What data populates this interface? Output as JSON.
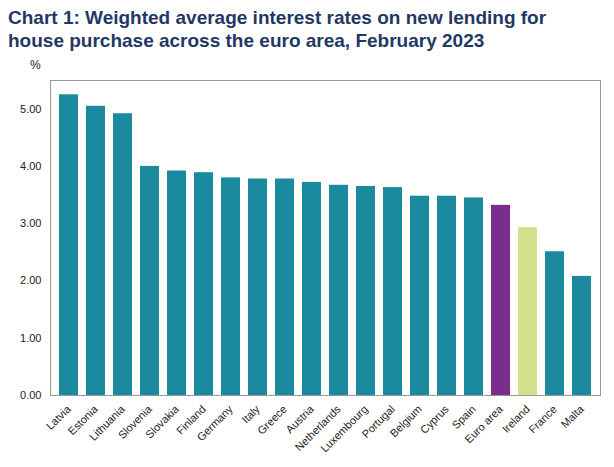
{
  "chart_data": {
    "type": "bar",
    "title": "Chart 1: Weighted average interest rates on new lending for house purchase across the euro area, February 2023",
    "y_label": "%",
    "categories": [
      "Latvia",
      "Estonia",
      "Lithuania",
      "Slovenia",
      "Slovakia",
      "Finland",
      "Germany",
      "Italy",
      "Greece",
      "Austria",
      "Netherlands",
      "Luxembourg",
      "Portugal",
      "Belgium",
      "Cyprus",
      "Spain",
      "Euro area",
      "Ireland",
      "France",
      "Malta"
    ],
    "values": [
      5.25,
      5.05,
      4.92,
      4.0,
      3.92,
      3.89,
      3.8,
      3.78,
      3.78,
      3.72,
      3.67,
      3.65,
      3.63,
      3.48,
      3.48,
      3.45,
      3.32,
      2.93,
      2.51,
      2.08
    ],
    "colors": [
      "#1b8a9e",
      "#1b8a9e",
      "#1b8a9e",
      "#1b8a9e",
      "#1b8a9e",
      "#1b8a9e",
      "#1b8a9e",
      "#1b8a9e",
      "#1b8a9e",
      "#1b8a9e",
      "#1b8a9e",
      "#1b8a9e",
      "#1b8a9e",
      "#1b8a9e",
      "#1b8a9e",
      "#1b8a9e",
      "#7b2d8e",
      "#d4e08a",
      "#1b8a9e",
      "#1b8a9e"
    ],
    "ylim": [
      0,
      5.5
    ],
    "yticks": [
      {
        "value": 0,
        "label": "0.00"
      },
      {
        "value": 1,
        "label": "1.00"
      },
      {
        "value": 2,
        "label": "2.00"
      },
      {
        "value": 3,
        "label": "3.00"
      },
      {
        "value": 4,
        "label": "4.00"
      },
      {
        "value": 5,
        "label": "5.00"
      }
    ],
    "grid": false
  }
}
